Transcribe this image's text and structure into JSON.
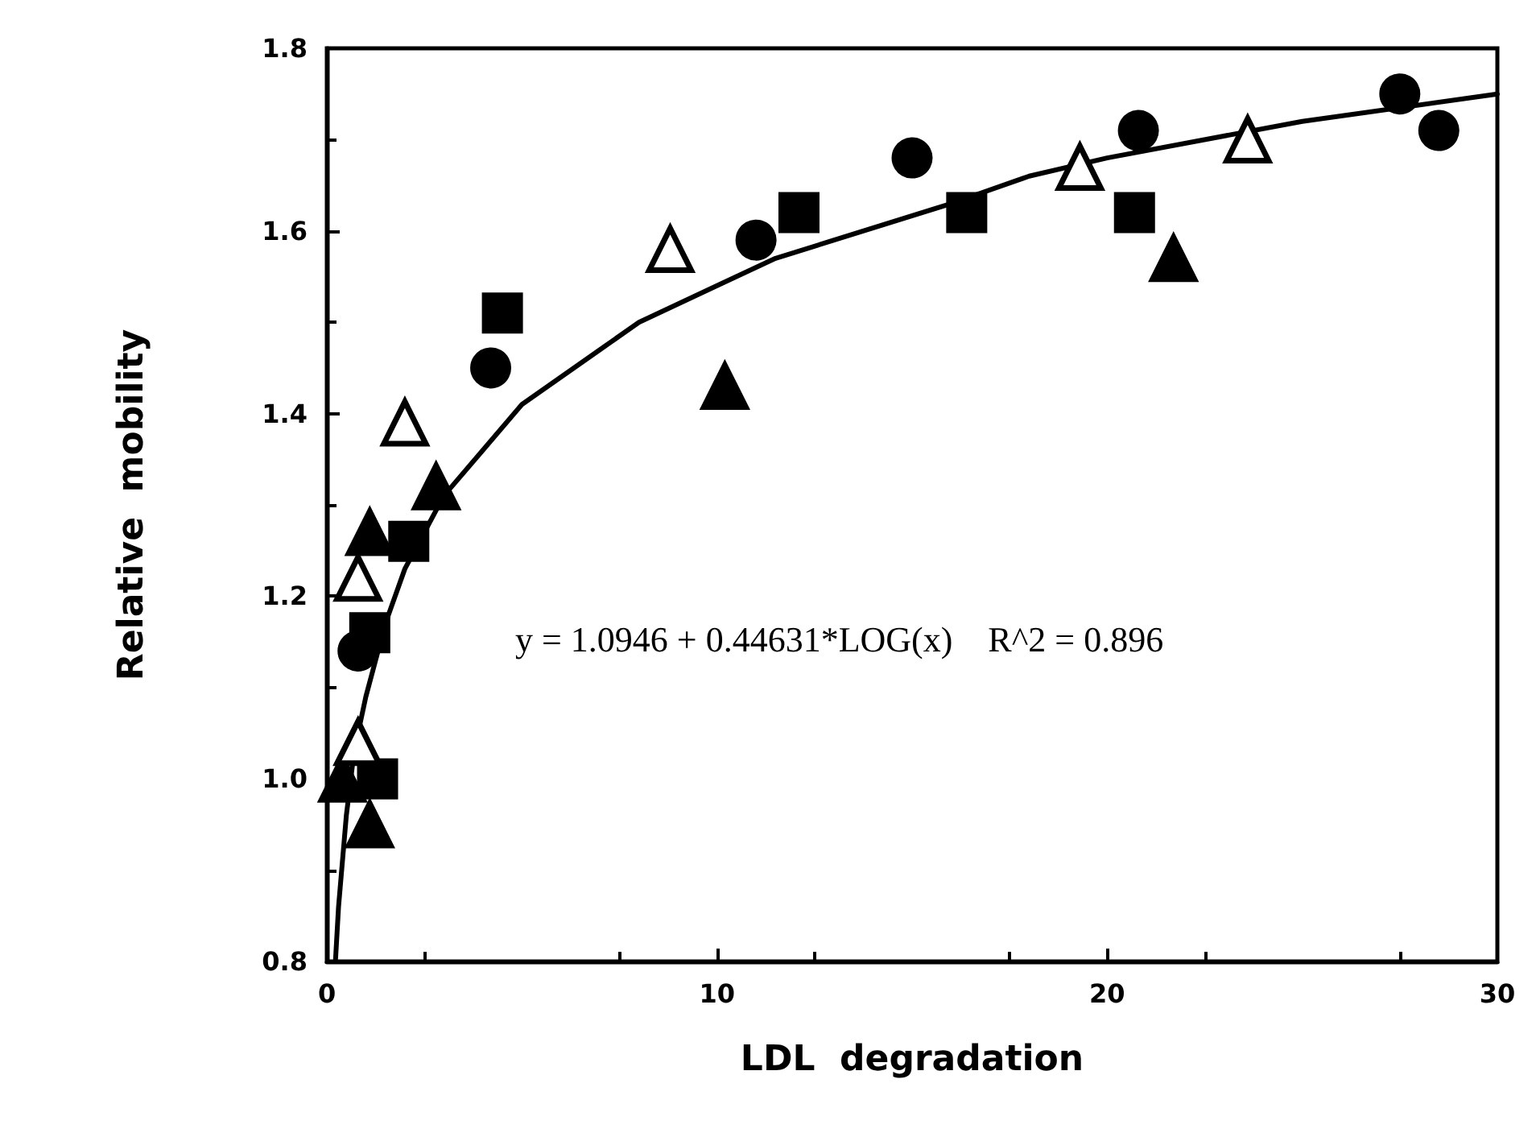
{
  "chart_data": {
    "type": "scatter",
    "xlabel": "LDL  degradation",
    "ylabel": "Relative  mobility",
    "xlim": [
      0,
      30
    ],
    "xticks": [
      0,
      10,
      20,
      30
    ],
    "ylim": [
      0.8,
      1.8
    ],
    "yticks": [
      0.8,
      {
        "value": 1,
        "label": "1.0"
      },
      1.2,
      1.4,
      1.6,
      1.8
    ],
    "grid": false,
    "annotations": [
      "y = 1.0946 + 0.44631*LOG(x)    R^2 = 0.896"
    ],
    "series": [
      {
        "type": "scatter",
        "marker": "circle",
        "color": "#000000",
        "x": [
          0.8,
          4.2,
          11.0,
          15.0,
          20.8,
          27.5,
          28.5
        ],
        "values": [
          1.14,
          1.45,
          1.59,
          1.68,
          1.71,
          1.75,
          1.71
        ]
      },
      {
        "type": "scatter",
        "marker": "square",
        "color": "#000000",
        "x": [
          1.3,
          1.1,
          2.1,
          4.5,
          12.1,
          16.4,
          20.7
        ],
        "values": [
          1.0,
          1.16,
          1.26,
          1.51,
          1.62,
          1.62,
          1.62
        ]
      },
      {
        "type": "scatter",
        "marker": "triangle",
        "color": "#000000",
        "x": [
          0.4,
          1.1,
          1.1,
          2.8,
          10.2,
          21.7
        ],
        "values": [
          1.0,
          0.95,
          1.27,
          1.32,
          1.43,
          1.57
        ]
      },
      {
        "type": "scatter",
        "marker": "triangle",
        "color": "#ffffff",
        "x": [
          0.8,
          0.8,
          2.0,
          8.8,
          19.3,
          23.6
        ],
        "values": [
          1.04,
          1.22,
          1.39,
          1.58,
          1.67,
          1.7
        ]
      },
      {
        "type": "line",
        "marker": "none",
        "line_style": "solid",
        "color": "#000000",
        "x": [
          0.22,
          0.3,
          0.5,
          0.7,
          1,
          1.5,
          2,
          2.5,
          3,
          4,
          5,
          6,
          7,
          8,
          10,
          11.5,
          13,
          16,
          18,
          20,
          25,
          30
        ],
        "values": [
          0.8,
          0.86,
          0.96,
          1.03,
          1.09,
          1.17,
          1.23,
          1.27,
          1.31,
          1.36,
          1.41,
          1.44,
          1.47,
          1.5,
          1.54,
          1.57,
          1.59,
          1.63,
          1.66,
          1.68,
          1.72,
          1.75
        ]
      }
    ]
  }
}
